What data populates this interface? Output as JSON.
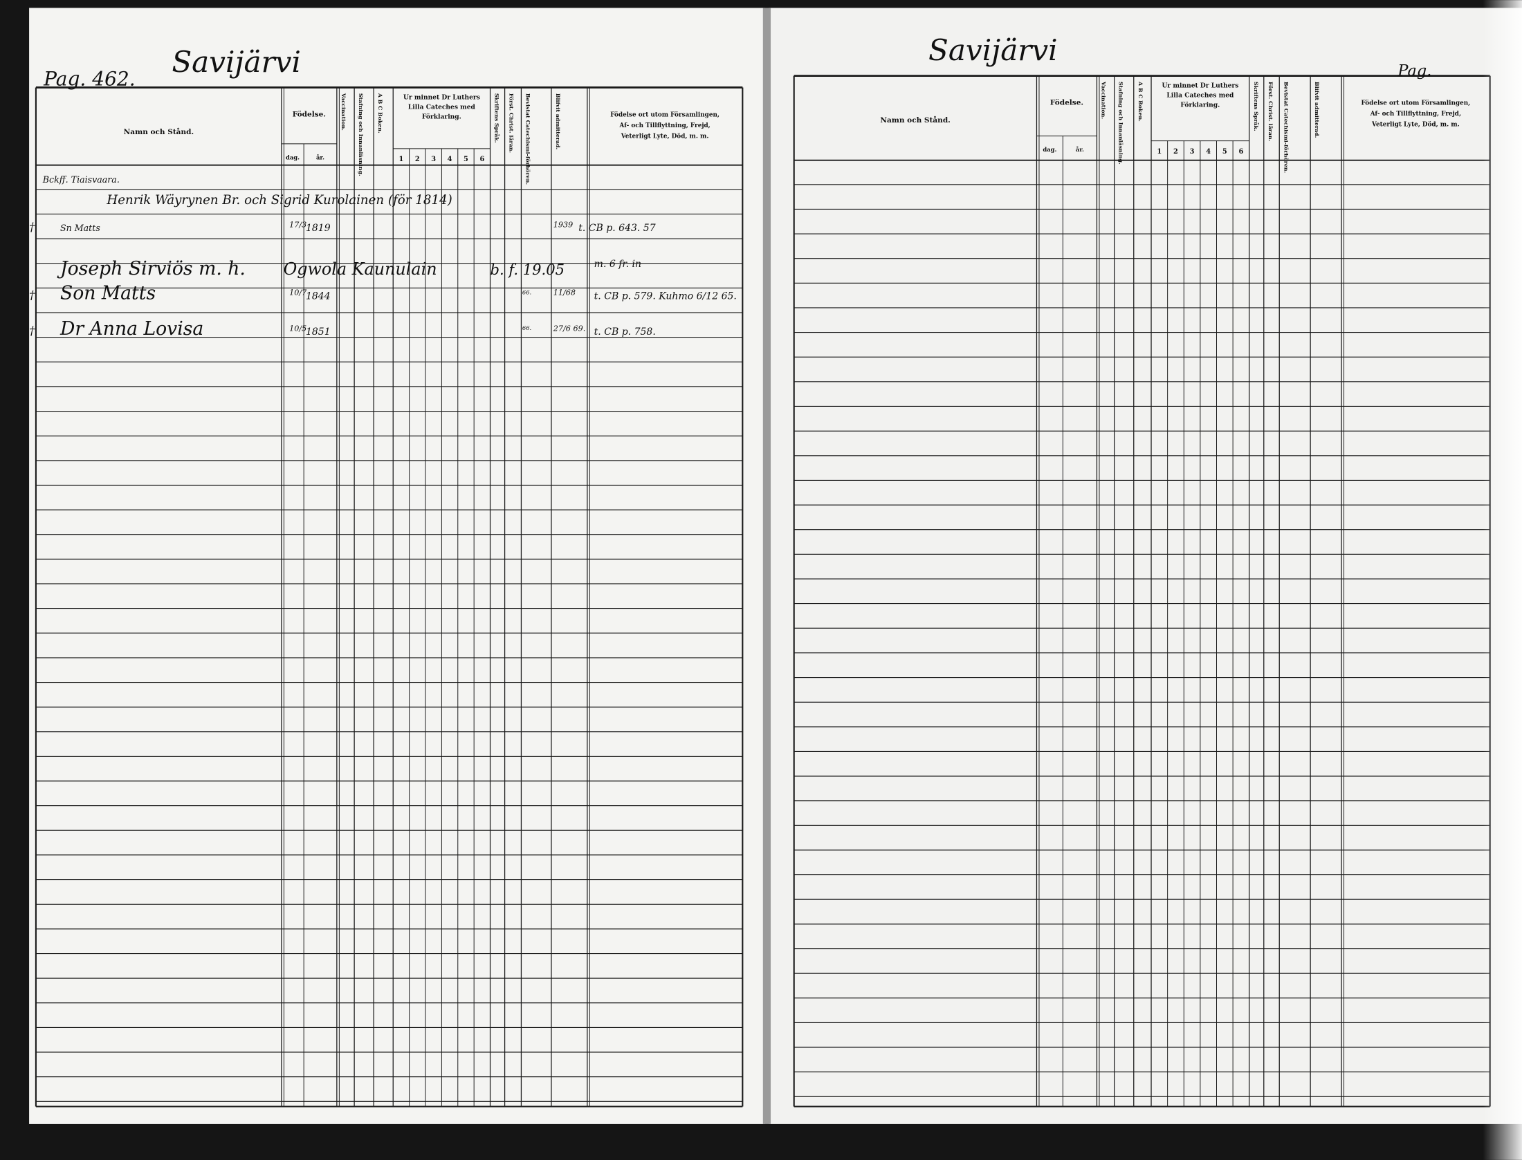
{
  "left_page": {
    "page_label": "Pag. 462.",
    "village": "Savijärvi",
    "headers": {
      "name": "Namn och Stånd.",
      "birth": "Födelse.",
      "birth_day": "dag.",
      "birth_year": "år.",
      "vaccination": "Vaccination.",
      "spelling": "Stafning och Innanläsning.",
      "abc": "A B C Boken.",
      "catechism": [
        "Ur minnet Dr Luthers",
        "Lilla Cateches med",
        "Förklaring."
      ],
      "catechism_cols": [
        "1",
        "2",
        "3",
        "4",
        "5",
        "6"
      ],
      "scripture": "Skriftens Språk.",
      "first_christ": "Först. Christ. läran.",
      "attended": "Bevistat Catechismi-förhören.",
      "admitted": "Blifvit admitterad.",
      "remarks": [
        "Födelse ort utom Församlingen,",
        "Af- och Tillflyttning, Frejd,",
        "Veterligt Lyte, Död, m. m."
      ]
    },
    "entries": [
      {
        "name": "Bckff. Tiaisvaara."
      },
      {
        "name": "Henrik Wäyrynen Br. och Sigrid Kurolainen (för 1814)"
      },
      {
        "margin": "†",
        "name": "Sn Matts",
        "day": "17/3",
        "year": "1819",
        "admitted": "1939",
        "remarks": "t. CB p. 643. 57"
      },
      {
        "name": "Joseph Sirviös m. h.",
        "birth": "Ogwola Kaunulain",
        "extra": "b. f. 19.05",
        "remarks": "m. 6 fr. in"
      },
      {
        "margin": "†",
        "name": "Son Matts",
        "day": "10/7",
        "year": "1844",
        "attended": "66.",
        "admitted": "11/68",
        "remarks": "t. CB p. 579. Kuhmo 6/12 65."
      },
      {
        "margin": "†",
        "name": "Dr Anna Lovisa",
        "day": "10/5",
        "year": "1851",
        "attended": "66.",
        "admitted": "27/6 69.",
        "remarks": "t. CB p. 758."
      }
    ]
  },
  "right_page": {
    "page_label": "Pag.",
    "village": "Savijärvi",
    "headers": {
      "name": "Namn och Stånd.",
      "birth": "Födelse.",
      "birth_day": "dag.",
      "birth_year": "år.",
      "vaccination": "Vaccination.",
      "spelling": "Stafning och Innanläsning.",
      "abc": "A B C Boken.",
      "catechism": [
        "Ur minnet Dr Luthers",
        "Lilla Cateches med",
        "Förklaring."
      ],
      "catechism_cols": [
        "1",
        "2",
        "3",
        "4",
        "5",
        "6"
      ],
      "scripture": "Skriftens Språk.",
      "first_christ": "Först. Christ. läran.",
      "attended": "Bevistat Catechismi-förhören.",
      "admitted": "Blifvit admitterad.",
      "remarks": [
        "Födelse ort utom Församlingen,",
        "Af- och Tillflyttning, Frejd,",
        "Veterligt Lyte, Död, m. m."
      ]
    }
  }
}
